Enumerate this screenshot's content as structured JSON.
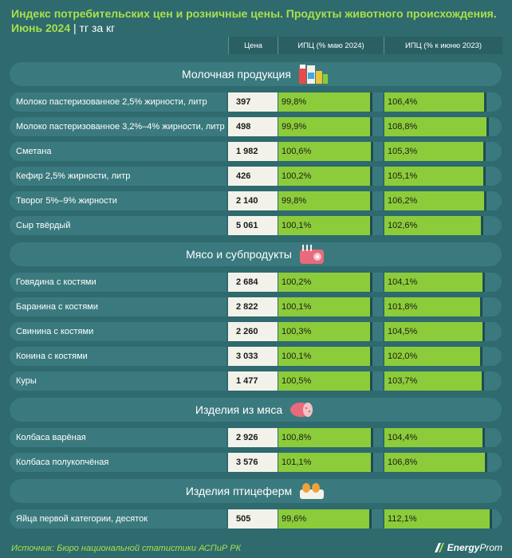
{
  "header": {
    "title_line1": "Индекс потребительских цен и розничные цены. Продукты животного происхождения.",
    "title_line2": "Июнь 2024",
    "unit": "| тг за кг"
  },
  "columns": {
    "price": "Цена",
    "cpi_may": "ИПЦ (% маю 2024)",
    "cpi_june": "ИПЦ (% к июню 2023)"
  },
  "colors": {
    "background": "#2e6a6e",
    "row": "#3a7a7e",
    "bar": "#8ccc3a",
    "accent": "#a8e04a",
    "price_cell": "#f2f2ea"
  },
  "footer": {
    "source": "Источник: Бюро национальной статистики АСПиР РК"
  },
  "logo": {
    "brand_bold": "Energy",
    "brand_lite": "Prom"
  },
  "chart_data": {
    "type": "table",
    "sections": [
      {
        "title": "Молочная продукция",
        "icon": "milk-products-icon",
        "rows": [
          {
            "name": "Молоко пастеризованное 2,5% жирности, литр",
            "price": "397",
            "cpi_may": 99.8,
            "cpi_may_label": "99,8%",
            "cpi_june": 106.4,
            "cpi_june_label": "106,4%"
          },
          {
            "name": "Молоко пастеризованное 3,2%–4% жирности, литр",
            "price": "498",
            "cpi_may": 99.9,
            "cpi_may_label": "99,9%",
            "cpi_june": 108.8,
            "cpi_june_label": "108,8%"
          },
          {
            "name": "Сметана",
            "price": "1 982",
            "cpi_may": 100.6,
            "cpi_may_label": "100,6%",
            "cpi_june": 105.3,
            "cpi_june_label": "105,3%"
          },
          {
            "name": "Кефир 2,5% жирности, литр",
            "price": "426",
            "cpi_may": 100.2,
            "cpi_may_label": "100,2%",
            "cpi_june": 105.1,
            "cpi_june_label": "105,1%"
          },
          {
            "name": "Творог 5%–9% жирности",
            "price": "2 140",
            "cpi_may": 99.8,
            "cpi_may_label": "99,8%",
            "cpi_june": 106.2,
            "cpi_june_label": "106,2%"
          },
          {
            "name": "Сыр твёрдый",
            "price": "5 061",
            "cpi_may": 100.1,
            "cpi_may_label": "100,1%",
            "cpi_june": 102.6,
            "cpi_june_label": "102,6%"
          }
        ]
      },
      {
        "title": "Мясо и субпродукты",
        "icon": "meat-icon",
        "rows": [
          {
            "name": "Говядина с костями",
            "price": "2 684",
            "cpi_may": 100.2,
            "cpi_may_label": "100,2%",
            "cpi_june": 104.1,
            "cpi_june_label": "104,1%"
          },
          {
            "name": "Баранина с костями",
            "price": "2 822",
            "cpi_may": 100.1,
            "cpi_may_label": "100,1%",
            "cpi_june": 101.8,
            "cpi_june_label": "101,8%"
          },
          {
            "name": "Свинина с костями",
            "price": "2 260",
            "cpi_may": 100.3,
            "cpi_may_label": "100,3%",
            "cpi_june": 104.5,
            "cpi_june_label": "104,5%"
          },
          {
            "name": "Конина с костями",
            "price": "3 033",
            "cpi_may": 100.1,
            "cpi_may_label": "100,1%",
            "cpi_june": 102.0,
            "cpi_june_label": "102,0%"
          },
          {
            "name": "Куры",
            "price": "1 477",
            "cpi_may": 100.5,
            "cpi_may_label": "100,5%",
            "cpi_june": 103.7,
            "cpi_june_label": "103,7%"
          }
        ]
      },
      {
        "title": "Изделия из мяса",
        "icon": "sausage-icon",
        "rows": [
          {
            "name": "Колбаса варёная",
            "price": "2 926",
            "cpi_may": 100.8,
            "cpi_may_label": "100,8%",
            "cpi_june": 104.4,
            "cpi_june_label": "104,4%"
          },
          {
            "name": "Колбаса полукопчёная",
            "price": "3 576",
            "cpi_may": 101.1,
            "cpi_may_label": "101,1%",
            "cpi_june": 106.8,
            "cpi_june_label": "106,8%"
          }
        ]
      },
      {
        "title": "Изделия птицеферм",
        "icon": "eggs-icon",
        "rows": [
          {
            "name": "Яйца первой категории, десяток",
            "price": "505",
            "cpi_may": 99.6,
            "cpi_may_label": "99,6%",
            "cpi_june": 112.1,
            "cpi_june_label": "112,1%"
          }
        ]
      }
    ]
  }
}
